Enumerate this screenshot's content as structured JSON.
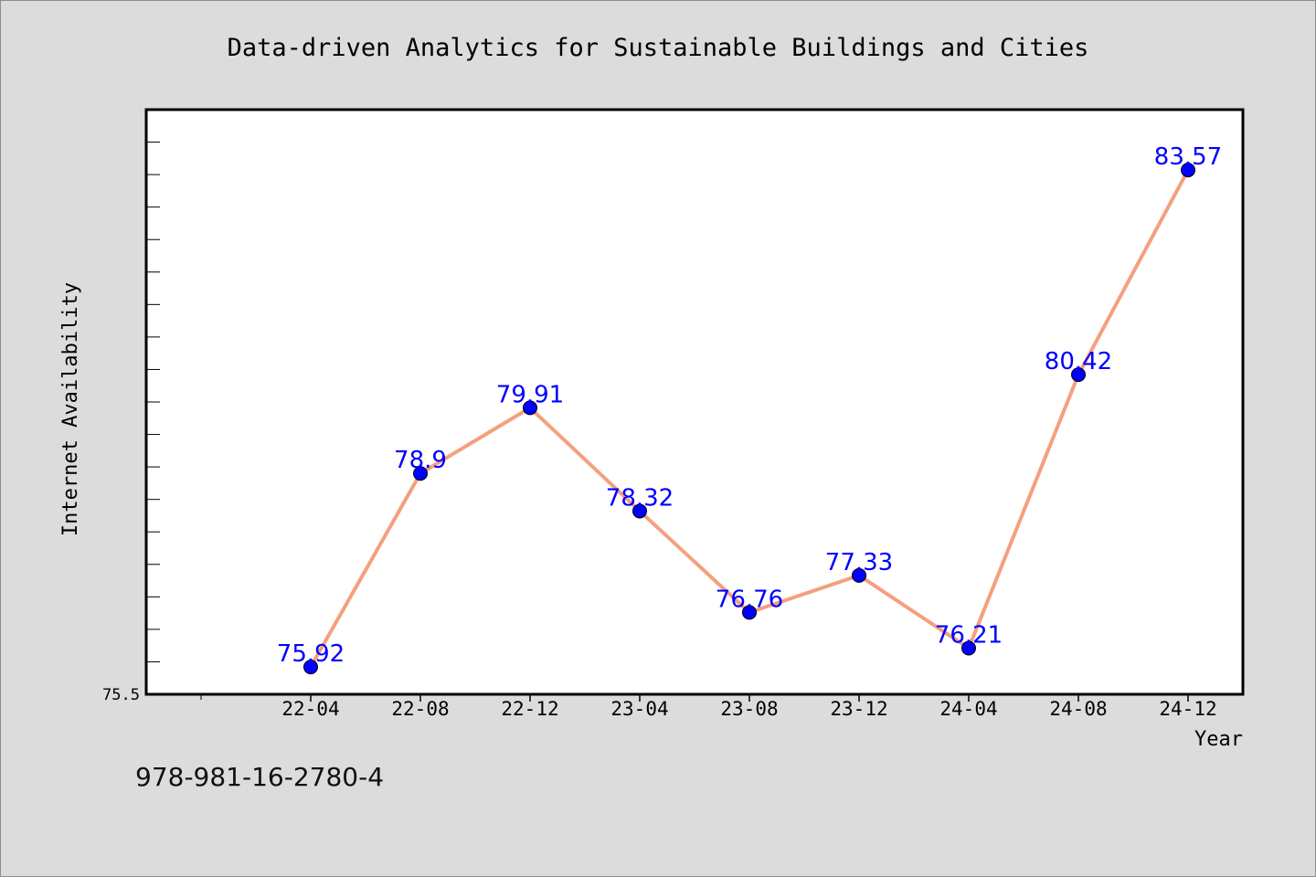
{
  "chart_data": {
    "type": "line",
    "title": "Data-driven Analytics for Sustainable Buildings and Cities",
    "xlabel": "Year",
    "ylabel": "Internet Availability",
    "categories": [
      "22-04",
      "22-08",
      "22-12",
      "23-04",
      "23-08",
      "23-12",
      "24-04",
      "24-08",
      "24-12"
    ],
    "series": [
      {
        "values": [
          75.92,
          78.9,
          79.91,
          78.32,
          76.76,
          77.33,
          76.21,
          80.42,
          83.57
        ]
      }
    ],
    "data_labels": [
      "75.92",
      "78.9",
      "79.91",
      "78.32",
      "76.76",
      "77.33",
      "76.21",
      "80.42",
      "83.57"
    ],
    "ylim": [
      75.5,
      84.5
    ],
    "y_tick_labels": [
      "75.5"
    ],
    "grid": false,
    "line_color": "#f4a07f",
    "marker_color": "#0000ff"
  },
  "footer": {
    "code": "978-981-16-2780-4"
  }
}
